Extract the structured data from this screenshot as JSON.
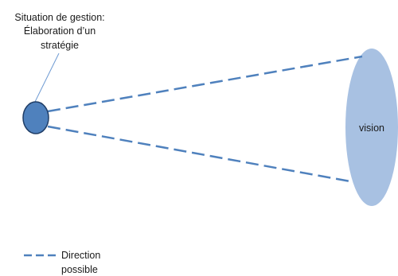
{
  "callout": {
    "line1": "Situation de gestion:",
    "line2": "Élaboration d’un",
    "line3": "stratégie"
  },
  "vision": {
    "label": "vision"
  },
  "legend": {
    "line1": "Direction",
    "line2": "possible"
  },
  "colors": {
    "start_node_fill": "#4f81bd",
    "start_node_stroke": "#1f3d66",
    "vision_fill": "#a8c1e2",
    "direction_line": "#4f81bd",
    "pointer_line": "#6f9bd3"
  }
}
